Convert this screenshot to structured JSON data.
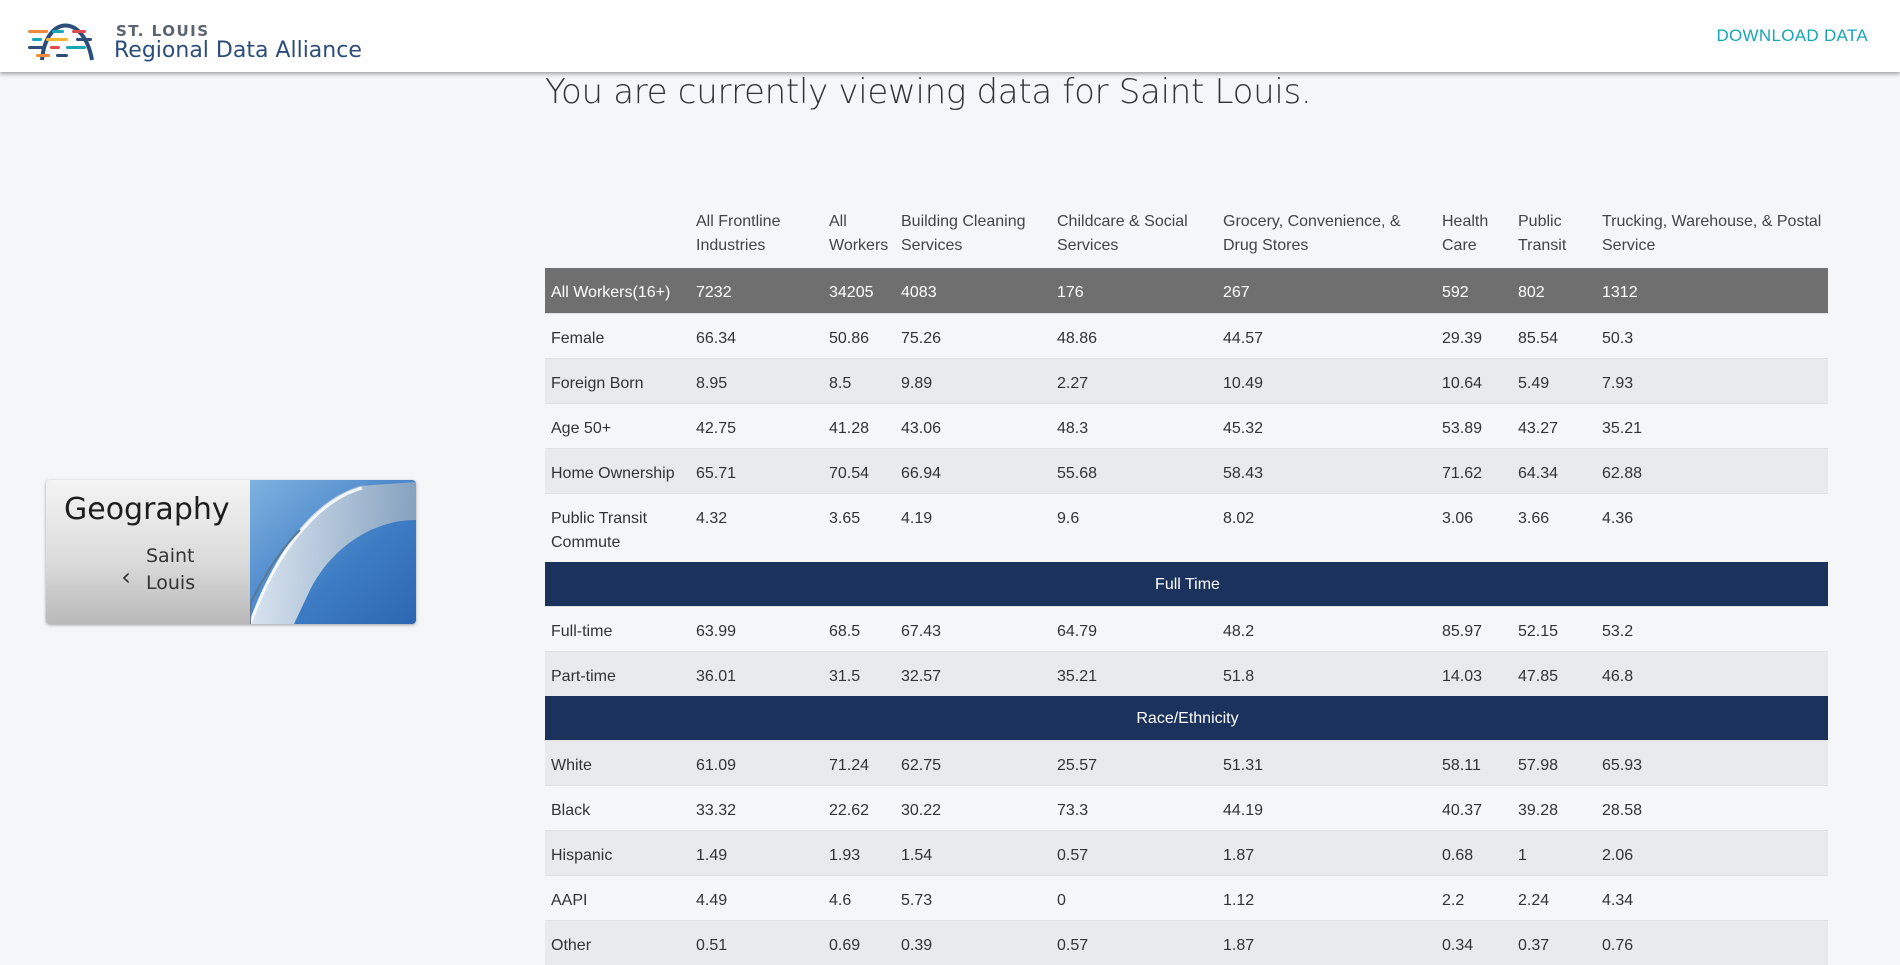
{
  "header": {
    "logo_small": "ST. LOUIS",
    "logo_big": "Regional Data Alliance",
    "download_label": "DOWNLOAD DATA"
  },
  "page": {
    "heading": "You are currently viewing data for Saint Louis."
  },
  "geography": {
    "title": "Geography",
    "value": "Saint Louis"
  },
  "table": {
    "columns": [
      "All Frontline Industries",
      "All Workers",
      "Building Cleaning Services",
      "Childcare & Social Services",
      "Grocery, Convenience, & Drug Stores",
      "Health Care",
      "Public Transit",
      "Trucking, Warehouse, & Postal Service"
    ],
    "rows": [
      {
        "label": "All Workers(16+)",
        "values": [
          "7232",
          "34205",
          "4083",
          "176",
          "267",
          "592",
          "802",
          "1312"
        ]
      },
      {
        "label": "Female",
        "values": [
          "66.34",
          "50.86",
          "75.26",
          "48.86",
          "44.57",
          "29.39",
          "85.54",
          "50.3"
        ]
      },
      {
        "label": "Foreign Born",
        "values": [
          "8.95",
          "8.5",
          "9.89",
          "2.27",
          "10.49",
          "10.64",
          "5.49",
          "7.93"
        ]
      },
      {
        "label": "Age 50+",
        "values": [
          "42.75",
          "41.28",
          "43.06",
          "48.3",
          "45.32",
          "53.89",
          "43.27",
          "35.21"
        ]
      },
      {
        "label": "Home Ownership",
        "values": [
          "65.71",
          "70.54",
          "66.94",
          "55.68",
          "58.43",
          "71.62",
          "64.34",
          "62.88"
        ]
      },
      {
        "label": "Public Transit Commute",
        "values": [
          "4.32",
          "3.65",
          "4.19",
          "9.6",
          "8.02",
          "3.06",
          "3.66",
          "4.36"
        ]
      }
    ],
    "section_full_time": "Full Time",
    "full_time_rows": [
      {
        "label": "Full-time",
        "values": [
          "63.99",
          "68.5",
          "67.43",
          "64.79",
          "48.2",
          "85.97",
          "52.15",
          "53.2"
        ]
      },
      {
        "label": "Part-time",
        "values": [
          "36.01",
          "31.5",
          "32.57",
          "35.21",
          "51.8",
          "14.03",
          "47.85",
          "46.8"
        ]
      }
    ],
    "section_race": "Race/Ethnicity",
    "race_rows": [
      {
        "label": "White",
        "values": [
          "61.09",
          "71.24",
          "62.75",
          "25.57",
          "51.31",
          "58.11",
          "57.98",
          "65.93"
        ]
      },
      {
        "label": "Black",
        "values": [
          "33.32",
          "22.62",
          "30.22",
          "73.3",
          "44.19",
          "40.37",
          "39.28",
          "28.58"
        ]
      },
      {
        "label": "Hispanic",
        "values": [
          "1.49",
          "1.93",
          "1.54",
          "0.57",
          "1.87",
          "0.68",
          "1",
          "2.06"
        ]
      },
      {
        "label": "AAPI",
        "values": [
          "4.49",
          "4.6",
          "5.73",
          "0",
          "1.12",
          "2.2",
          "2.24",
          "4.34"
        ]
      },
      {
        "label": "Other",
        "values": [
          "0.51",
          "0.69",
          "0.39",
          "0.57",
          "1.87",
          "0.34",
          "0.37",
          "0.76"
        ]
      }
    ]
  }
}
